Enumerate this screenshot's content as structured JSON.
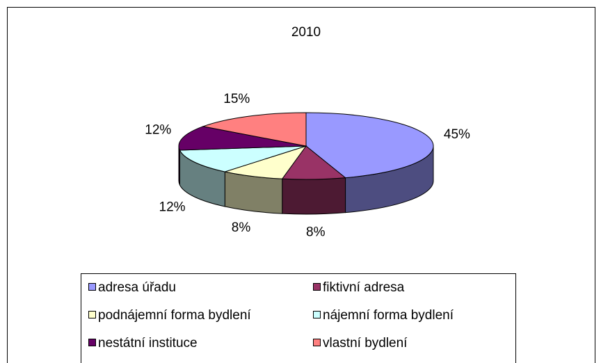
{
  "chart_data": {
    "type": "pie3d",
    "title": "2010",
    "categories": [
      "adresa úřadu",
      "fiktivní adresa",
      "podnájemní forma bydlení",
      "nájemní forma bydlení",
      "nestátní instituce",
      "vlastní bydlení"
    ],
    "values": [
      45,
      8,
      8,
      12,
      12,
      15
    ],
    "value_labels": [
      "45%",
      "8%",
      "8%",
      "12%",
      "12%",
      "15%"
    ],
    "colors": [
      "#9999ff",
      "#993366",
      "#ffffcc",
      "#ccffff",
      "#660066",
      "#ff8080"
    ]
  }
}
